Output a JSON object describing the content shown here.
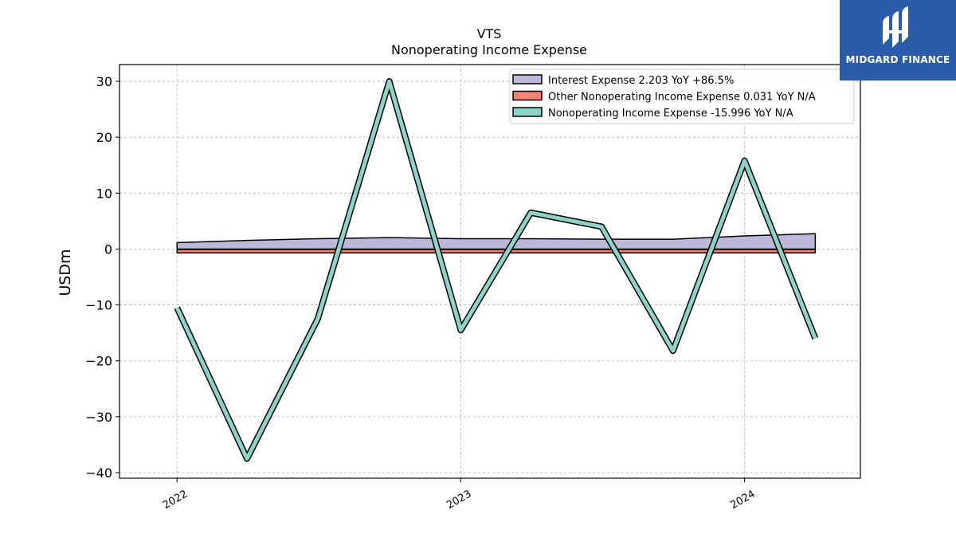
{
  "brand": {
    "name": "MIDGARD FINANCE",
    "bg_color": "#2a5caa"
  },
  "chart_data": {
    "type": "line",
    "title": "VTS",
    "subtitle": "Nonoperating Income Expense",
    "xlabel": "",
    "ylabel": "USDm",
    "ylim": [
      -41,
      33
    ],
    "yticks": [
      30,
      20,
      10,
      0,
      -10,
      -20,
      -30,
      -40
    ],
    "ytick_labels": [
      "30",
      "20",
      "10",
      "0",
      "−10",
      "−20",
      "−30",
      "−40"
    ],
    "xlim": [
      "2021-10-19",
      "2024-05-29"
    ],
    "xticks": [
      "2022-01-01",
      "2023-01-01",
      "2024-01-01"
    ],
    "xtick_labels": [
      "2022",
      "2023",
      "2024"
    ],
    "x": [
      "2022-01-01",
      "2022-04-01",
      "2022-07-01",
      "2022-10-01",
      "2023-01-01",
      "2023-04-01",
      "2023-07-01",
      "2023-10-01",
      "2024-01-01",
      "2024-04-01"
    ],
    "grid": true,
    "legend_position": "top-right",
    "series": [
      {
        "name": "Interest Expense  2.203 YoY +86.5%",
        "kind": "band",
        "color": "#bcb8da",
        "values": [
          0.6,
          1.0,
          1.3,
          1.5,
          1.3,
          1.3,
          1.2,
          1.2,
          1.8,
          2.2
        ]
      },
      {
        "name": "Other Nonoperating Income Expense  0.031 YoY N/A",
        "kind": "band",
        "color": "#f98072",
        "values": [
          0.0,
          0.0,
          0.0,
          0.0,
          0.0,
          0.0,
          0.01,
          0.01,
          0.01,
          0.031
        ]
      },
      {
        "name": "Nonoperating Income Expense  -15.996 YoY N/A",
        "kind": "line",
        "color": "#8dd3c7",
        "values": [
          -10.5,
          -37.5,
          -12.5,
          30.0,
          -14.5,
          6.5,
          4.0,
          -18.2,
          15.8,
          -16.0
        ]
      }
    ]
  }
}
